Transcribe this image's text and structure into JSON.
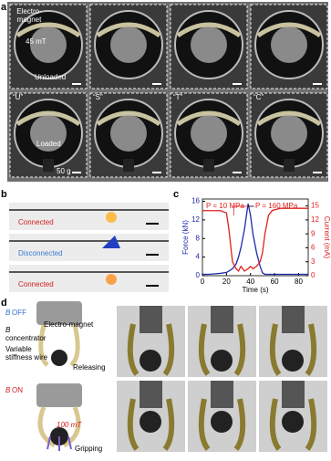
{
  "panel_a": {
    "letter": "a",
    "electromagnet_lines": [
      "Electro-",
      "magnet"
    ],
    "field": "45 mT",
    "unloaded": "Unloaded",
    "shapes": [
      "“U”",
      "“S”",
      "“T”",
      "“C”"
    ],
    "loaded": "Loaded",
    "weight": "50 g"
  },
  "panel_b": {
    "letter": "b",
    "states": [
      "Connected",
      "Disconnected",
      "Connected"
    ]
  },
  "panel_c": {
    "letter": "c"
  },
  "chart_data": {
    "type": "line",
    "xlabel": "Time (s)",
    "ylabel": "Force (kN)",
    "y2label": "Current (mA)",
    "annotations": [
      "P = 10 MPa",
      "P = 160 MPa"
    ],
    "x": [
      0,
      5,
      10,
      15,
      20,
      22,
      25,
      28,
      30,
      32,
      35,
      38,
      40,
      42,
      45,
      48,
      50,
      52,
      55,
      58,
      60,
      65,
      70,
      75,
      80,
      85,
      88
    ],
    "series": [
      {
        "name": "Force",
        "color": "#1f2aa8",
        "values": [
          0.3,
          0.3,
          0.4,
          0.5,
          0.7,
          1,
          1.5,
          2.5,
          4,
          6,
          10,
          15.5,
          13,
          9,
          5,
          2,
          0.6,
          0.3,
          0.3,
          0.3,
          0.3,
          0.3,
          0.3,
          0.3,
          0.3,
          0.3,
          0.3
        ]
      },
      {
        "name": "Current",
        "color": "#e0201e",
        "axis": "y2",
        "values": [
          14,
          14,
          14,
          14,
          13.5,
          10,
          3,
          1.5,
          1,
          2,
          1,
          1.5,
          2,
          1.5,
          2,
          3,
          5,
          9,
          13,
          14,
          14.2,
          14.5,
          14.5,
          14.5,
          14.5,
          14.5,
          14.5
        ]
      }
    ],
    "xlim": [
      0,
      88
    ],
    "xticks": [
      0,
      20,
      40,
      60,
      80
    ],
    "ylim": [
      0,
      16.5
    ],
    "yticks": [
      0,
      4,
      8,
      12,
      16
    ],
    "y2lim": [
      0,
      16.5
    ],
    "y2ticks": [
      0,
      3,
      6,
      9,
      12,
      15
    ]
  },
  "panel_d": {
    "letter": "d",
    "b_off_symbol": "B",
    "b_off_state": "OFF",
    "concentrator_lines": [
      "B",
      "concentrator"
    ],
    "electromagnet": "Electro-magnet",
    "wire_lines": [
      "Variable",
      "stiffness wire"
    ],
    "releasing": "Releasing",
    "b_on_symbol": "B",
    "b_on_state": "ON",
    "field": "100 mT",
    "gripping": "Gripping"
  }
}
